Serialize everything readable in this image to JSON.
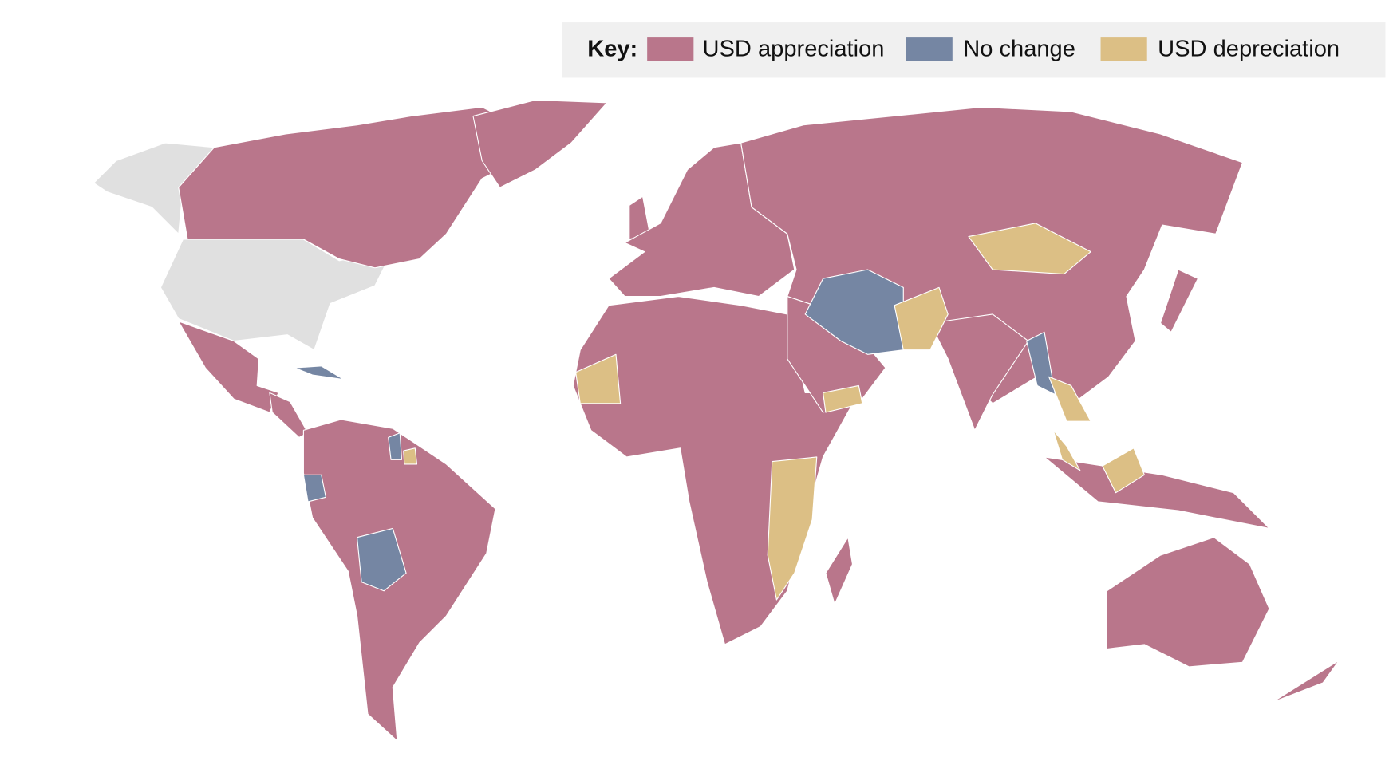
{
  "legend": {
    "title": "Key:",
    "items": [
      {
        "label": "USD appreciation",
        "color": "#b9768b"
      },
      {
        "label": "No change",
        "color": "#7586a3"
      },
      {
        "label": "USD depreciation",
        "color": "#dcbf85"
      }
    ]
  },
  "no_data_color": "#e0e0e0"
}
